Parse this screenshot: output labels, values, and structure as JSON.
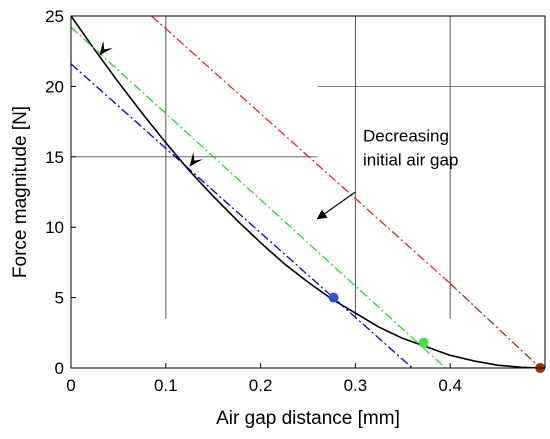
{
  "chart_data": {
    "type": "line",
    "xlabel": "Air gap distance [mm]",
    "ylabel": "Force magnitude [N]",
    "xlim": [
      0,
      0.5
    ],
    "ylim": [
      0,
      25
    ],
    "x_ticks": [
      0,
      0.1,
      0.2,
      0.3,
      0.4
    ],
    "x_tick_labels": [
      "0",
      "0.1",
      "0.2",
      "0.3",
      "0.4"
    ],
    "y_ticks": [
      0,
      5,
      10,
      15,
      20,
      25
    ],
    "y_tick_labels": [
      "0",
      "5",
      "10",
      "15",
      "20",
      "25"
    ],
    "grid": false,
    "series": [
      {
        "color": "#000000",
        "style": "solid",
        "x": [
          0,
          0.025,
          0.05,
          0.075,
          0.1,
          0.125,
          0.15,
          0.175,
          0.2,
          0.225,
          0.25,
          0.275,
          0.3,
          0.325,
          0.35,
          0.375,
          0.4,
          0.425,
          0.45,
          0.475,
          0.495
        ],
        "y": [
          25.0,
          22.6,
          20.3,
          18.1,
          16.0,
          14.0,
          12.2,
          10.5,
          8.9,
          7.4,
          6.1,
          4.9,
          3.9,
          2.9,
          2.1,
          1.5,
          0.9,
          0.5,
          0.2,
          0.05,
          0.0
        ]
      },
      {
        "color": "#0000cc",
        "style": "dashdot",
        "x": [
          0,
          0.36
        ],
        "y": [
          21.6,
          0
        ]
      },
      {
        "color": "#22dd22",
        "style": "dashdot",
        "x": [
          0,
          0.395
        ],
        "y": [
          24.2,
          0
        ]
      },
      {
        "color": "#ee2222",
        "style": "dashdot",
        "x": [
          0.085,
          0.4
        ],
        "y": [
          25,
          6.0
        ]
      },
      {
        "color": "#993300",
        "style": "dashdot",
        "x": [
          0.4,
          0.495
        ],
        "y": [
          6.0,
          0
        ]
      }
    ],
    "markers": [
      {
        "x": 0.277,
        "y": 5.0,
        "color": "#3355cc"
      },
      {
        "x": 0.372,
        "y": 1.8,
        "color": "#44dd44"
      },
      {
        "x": 0.495,
        "y": 0.0,
        "color": "#993300"
      }
    ],
    "reference_lines": {
      "vertical": [
        {
          "x": 0.1,
          "y_from": 3.5,
          "y_to": 25
        },
        {
          "x": 0.3,
          "y_from": 3.5,
          "y_to": 25
        },
        {
          "x": 0.4,
          "y_from": 3.5,
          "y_to": 25
        }
      ],
      "horizontal": [
        {
          "y": 15,
          "x_from": 0,
          "x_to": 0.26
        },
        {
          "y": 20,
          "x_from": 0.26,
          "x_to": 0.5
        }
      ]
    },
    "tangent_arrows": [
      {
        "tip_x": 0.03,
        "tip_y": 22.2,
        "tail_x": 0.045,
        "tail_y": 23.5
      },
      {
        "tip_x": 0.125,
        "tip_y": 14.3,
        "tail_x": 0.14,
        "tail_y": 15.6
      }
    ],
    "annotations": [
      {
        "lines": [
          "Decreasing",
          "initial air gap"
        ],
        "text_x": 0.308,
        "text_y": 16.1,
        "arrow_from_x": 0.3,
        "arrow_from_y": 12.5,
        "arrow_to_x": 0.26,
        "arrow_to_y": 10.6
      }
    ]
  }
}
